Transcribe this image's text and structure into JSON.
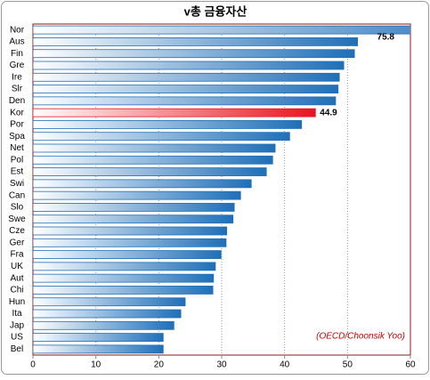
{
  "chart_data": {
    "type": "hbar",
    "title": "v총 금융자산",
    "categories": [
      "Nor",
      "Aus",
      "Fin",
      "Gre",
      "Ire",
      "Slr",
      "Den",
      "Kor",
      "Por",
      "Spa",
      "Net",
      "Pol",
      "Est",
      "Swi",
      "Can",
      "Slo",
      "Swe",
      "Cze",
      "Ger",
      "Fra",
      "UK",
      "Aut",
      "Chi",
      "Hun",
      "Ita",
      "Jap",
      "US",
      "Bel"
    ],
    "values": [
      75.8,
      51.6,
      51.1,
      49.4,
      48.7,
      48.5,
      48.1,
      44.9,
      42.7,
      40.8,
      38.5,
      38.1,
      37.1,
      34.7,
      33.0,
      32.0,
      31.8,
      30.8,
      30.7,
      29.9,
      29.0,
      28.7,
      28.6,
      24.2,
      23.5,
      22.4,
      20.7,
      20.7
    ],
    "value_labels": [
      "75.8",
      null,
      null,
      null,
      null,
      null,
      null,
      "44.9",
      null,
      null,
      null,
      null,
      null,
      null,
      null,
      null,
      null,
      null,
      null,
      null,
      null,
      null,
      null,
      null,
      null,
      null,
      null,
      null
    ],
    "colors": [
      "#1f6fb8",
      "#1f6fb8",
      "#1f6fb8",
      "#1f6fb8",
      "#1f6fb8",
      "#1f6fb8",
      "#1f6fb8",
      "#e8141c",
      "#1f6fb8",
      "#1f6fb8",
      "#1f6fb8",
      "#1f6fb8",
      "#1f6fb8",
      "#1f6fb8",
      "#1f6fb8",
      "#1f6fb8",
      "#1f6fb8",
      "#1f6fb8",
      "#1f6fb8",
      "#1f6fb8",
      "#1f6fb8",
      "#1f6fb8",
      "#1f6fb8",
      "#1f6fb8",
      "#1f6fb8",
      "#1f6fb8",
      "#1f6fb8",
      "#1f6fb8"
    ],
    "xlim": [
      0,
      60
    ],
    "xticks": [
      0,
      10,
      20,
      30,
      40,
      50,
      60
    ],
    "grid": true,
    "annotation": "(OECD/Choonsik Yoo)"
  }
}
